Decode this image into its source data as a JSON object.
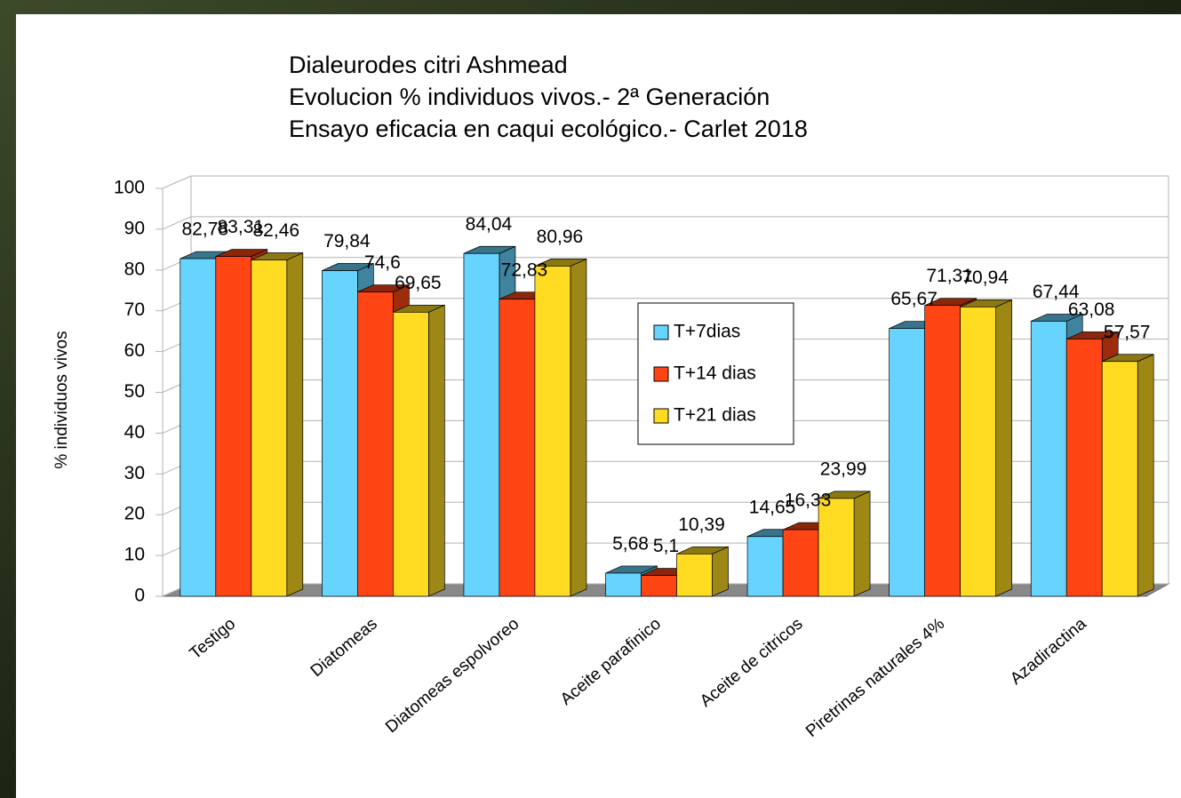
{
  "chart_data": {
    "type": "bar3d",
    "title": [
      "Dialeurodes citri Ashmead",
      "Evolucion % individuos vivos.- 2ª Generación",
      "Ensayo eficacia en caqui ecológico.- Carlet 2018"
    ],
    "y_label": "% individuos vivos",
    "categories": [
      "Testigo",
      "Diatomeas",
      "Diatomeas espolvoreo",
      "Aceite parafinico",
      "Aceite de citricos",
      "Piretrinas naturales 4%",
      "Azadiractina"
    ],
    "series": [
      {
        "name": "T+7dias",
        "color": "#66d4ff",
        "values": [
          82.78,
          79.84,
          84.04,
          5.68,
          14.65,
          65.67,
          67.44
        ],
        "value_labels": [
          "82,78",
          "79,84",
          "84,04",
          "5,68",
          "14,65",
          "65,67",
          "67,44"
        ]
      },
      {
        "name": "T+14 dias",
        "color": "#ff4513",
        "values": [
          83.31,
          74.6,
          72.83,
          5.1,
          16.33,
          71.31,
          63.08
        ],
        "value_labels": [
          "83,31",
          "74,6",
          "72,83",
          "5,1",
          "16,33",
          "71,31",
          "63,08"
        ]
      },
      {
        "name": "T+21 dias",
        "color": "#ffdb22",
        "values": [
          82.46,
          69.65,
          80.96,
          10.39,
          23.99,
          70.94,
          57.57
        ],
        "value_labels": [
          "82,46",
          "69,65",
          "80,96",
          "10,39",
          "23,99",
          "70,94",
          "57,57"
        ]
      }
    ],
    "ylim": [
      0,
      100
    ],
    "yticks": [
      0,
      10,
      20,
      30,
      40,
      50,
      60,
      70,
      80,
      90,
      100
    ],
    "grid": true,
    "legend": "center"
  }
}
